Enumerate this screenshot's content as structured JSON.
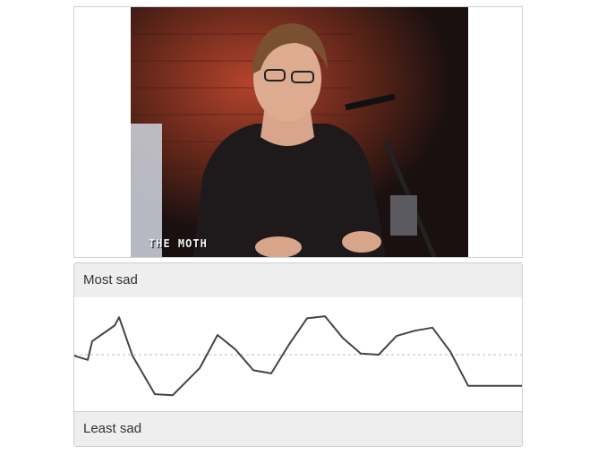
{
  "video": {
    "overlay_text": "THE MOTH"
  },
  "labels": {
    "top": "Most sad",
    "bottom": "Least sad"
  },
  "chart_data": {
    "type": "line",
    "x": [
      0,
      3,
      4,
      9,
      10,
      13,
      18,
      22,
      28,
      32,
      36,
      40,
      44,
      48,
      52,
      56,
      60,
      64,
      68,
      72,
      76,
      80,
      84,
      88,
      92,
      96,
      100
    ],
    "series": [
      {
        "values": [
          0.49,
          0.45,
          0.63,
          0.78,
          0.86,
          0.49,
          0.12,
          0.11,
          0.37,
          0.69,
          0.55,
          0.35,
          0.32,
          0.6,
          0.85,
          0.87,
          0.66,
          0.51,
          0.5,
          0.68,
          0.73,
          0.76,
          0.53,
          0.2,
          0.2,
          0.2,
          0.2
        ]
      }
    ],
    "reference_line": 0.5,
    "ylim": [
      0,
      1
    ],
    "xlim": [
      0,
      100
    ],
    "grid": false,
    "line_color": "#444444",
    "reference_color": "#bbbbbb"
  }
}
